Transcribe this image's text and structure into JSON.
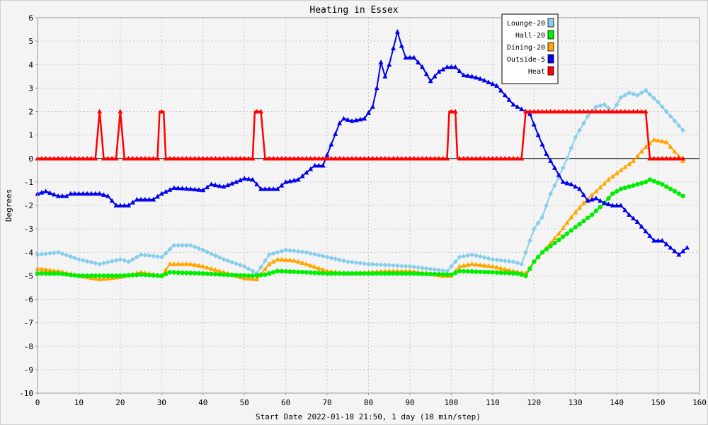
{
  "chart_data": {
    "type": "line",
    "title": "Heating in Essex",
    "xlabel": "Start Date 2022-01-18 21:50, 1 day (10 min/step)",
    "ylabel": "Degrees",
    "xlim": [
      0,
      160
    ],
    "ylim": [
      -10,
      6
    ],
    "x_ticks": [
      0,
      10,
      20,
      30,
      40,
      50,
      60,
      70,
      80,
      90,
      100,
      110,
      120,
      130,
      140,
      150,
      160
    ],
    "y_ticks": [
      6,
      5,
      4,
      3,
      2,
      1,
      0,
      -1,
      -2,
      -3,
      -4,
      -5,
      -6,
      -7,
      -8,
      -9,
      -10
    ],
    "grid": true,
    "legend_position": "top-right",
    "series": [
      {
        "name": "Lounge-20",
        "color": "#87ceeb",
        "marker": "diamond",
        "points": [
          [
            0,
            -4.1
          ],
          [
            5,
            -4.0
          ],
          [
            10,
            -4.3
          ],
          [
            15,
            -4.5
          ],
          [
            20,
            -4.3
          ],
          [
            22,
            -4.4
          ],
          [
            25,
            -4.1
          ],
          [
            30,
            -4.2
          ],
          [
            33,
            -3.7
          ],
          [
            37,
            -3.7
          ],
          [
            40,
            -3.9
          ],
          [
            45,
            -4.3
          ],
          [
            50,
            -4.6
          ],
          [
            53,
            -4.9
          ],
          [
            56,
            -4.1
          ],
          [
            60,
            -3.9
          ],
          [
            65,
            -4.0
          ],
          [
            70,
            -4.2
          ],
          [
            75,
            -4.4
          ],
          [
            80,
            -4.5
          ],
          [
            90,
            -4.6
          ],
          [
            99,
            -4.8
          ],
          [
            102,
            -4.2
          ],
          [
            105,
            -4.1
          ],
          [
            110,
            -4.3
          ],
          [
            115,
            -4.4
          ],
          [
            117,
            -4.5
          ],
          [
            120,
            -3.0
          ],
          [
            122,
            -2.5
          ],
          [
            124,
            -1.5
          ],
          [
            126,
            -0.8
          ],
          [
            128,
            0.0
          ],
          [
            130,
            0.9
          ],
          [
            133,
            1.8
          ],
          [
            135,
            2.2
          ],
          [
            137,
            2.3
          ],
          [
            139,
            2.0
          ],
          [
            141,
            2.6
          ],
          [
            143,
            2.8
          ],
          [
            145,
            2.7
          ],
          [
            147,
            2.9
          ],
          [
            150,
            2.4
          ],
          [
            153,
            1.8
          ],
          [
            156,
            1.2
          ]
        ]
      },
      {
        "name": "Hall-20",
        "color": "#00ee00",
        "marker": "circle",
        "points": [
          [
            0,
            -4.9
          ],
          [
            5,
            -4.9
          ],
          [
            10,
            -5.0
          ],
          [
            15,
            -5.0
          ],
          [
            20,
            -5.0
          ],
          [
            25,
            -4.95
          ],
          [
            30,
            -5.0
          ],
          [
            32,
            -4.85
          ],
          [
            40,
            -4.9
          ],
          [
            45,
            -4.95
          ],
          [
            52,
            -5.0
          ],
          [
            55,
            -4.95
          ],
          [
            58,
            -4.8
          ],
          [
            65,
            -4.85
          ],
          [
            70,
            -4.9
          ],
          [
            80,
            -4.9
          ],
          [
            90,
            -4.9
          ],
          [
            100,
            -4.95
          ],
          [
            102,
            -4.8
          ],
          [
            110,
            -4.85
          ],
          [
            116,
            -4.9
          ],
          [
            118,
            -5.0
          ],
          [
            120,
            -4.4
          ],
          [
            122,
            -4.0
          ],
          [
            125,
            -3.6
          ],
          [
            128,
            -3.2
          ],
          [
            131,
            -2.8
          ],
          [
            134,
            -2.4
          ],
          [
            137,
            -1.9
          ],
          [
            139,
            -1.5
          ],
          [
            141,
            -1.3
          ],
          [
            143,
            -1.2
          ],
          [
            145,
            -1.1
          ],
          [
            147,
            -1.0
          ],
          [
            148,
            -0.9
          ],
          [
            151,
            -1.1
          ],
          [
            154,
            -1.4
          ],
          [
            156,
            -1.6
          ]
        ]
      },
      {
        "name": "Dining-20",
        "color": "#ffa500",
        "marker": "triangle",
        "points": [
          [
            0,
            -4.7
          ],
          [
            5,
            -4.8
          ],
          [
            10,
            -5.0
          ],
          [
            15,
            -5.15
          ],
          [
            20,
            -5.05
          ],
          [
            25,
            -4.85
          ],
          [
            30,
            -5.0
          ],
          [
            32,
            -4.5
          ],
          [
            37,
            -4.5
          ],
          [
            40,
            -4.6
          ],
          [
            45,
            -4.85
          ],
          [
            50,
            -5.1
          ],
          [
            53,
            -5.15
          ],
          [
            56,
            -4.5
          ],
          [
            58,
            -4.3
          ],
          [
            62,
            -4.35
          ],
          [
            65,
            -4.5
          ],
          [
            70,
            -4.8
          ],
          [
            75,
            -4.9
          ],
          [
            85,
            -4.8
          ],
          [
            90,
            -4.8
          ],
          [
            98,
            -5.0
          ],
          [
            100,
            -5.0
          ],
          [
            102,
            -4.6
          ],
          [
            105,
            -4.5
          ],
          [
            110,
            -4.6
          ],
          [
            115,
            -4.8
          ],
          [
            118,
            -4.9
          ],
          [
            120,
            -4.4
          ],
          [
            123,
            -3.8
          ],
          [
            126,
            -3.2
          ],
          [
            129,
            -2.5
          ],
          [
            132,
            -1.9
          ],
          [
            135,
            -1.4
          ],
          [
            138,
            -0.9
          ],
          [
            141,
            -0.5
          ],
          [
            144,
            -0.1
          ],
          [
            147,
            0.5
          ],
          [
            149,
            0.8
          ],
          [
            152,
            0.7
          ],
          [
            154,
            0.3
          ],
          [
            156,
            -0.1
          ]
        ]
      },
      {
        "name": "Outside-5",
        "color": "#0000ee",
        "marker": "triangle",
        "points": [
          [
            0,
            -1.5
          ],
          [
            2,
            -1.4
          ],
          [
            5,
            -1.6
          ],
          [
            7,
            -1.6
          ],
          [
            8,
            -1.5
          ],
          [
            15,
            -1.5
          ],
          [
            17,
            -1.6
          ],
          [
            19,
            -2.0
          ],
          [
            22,
            -2.0
          ],
          [
            24,
            -1.75
          ],
          [
            28,
            -1.75
          ],
          [
            30,
            -1.5
          ],
          [
            33,
            -1.25
          ],
          [
            37,
            -1.3
          ],
          [
            40,
            -1.35
          ],
          [
            42,
            -1.1
          ],
          [
            45,
            -1.2
          ],
          [
            48,
            -1.0
          ],
          [
            50,
            -0.85
          ],
          [
            52,
            -0.9
          ],
          [
            54,
            -1.3
          ],
          [
            58,
            -1.3
          ],
          [
            60,
            -1.0
          ],
          [
            63,
            -0.9
          ],
          [
            65,
            -0.6
          ],
          [
            67,
            -0.3
          ],
          [
            69,
            -0.3
          ],
          [
            71,
            0.6
          ],
          [
            73,
            1.5
          ],
          [
            74,
            1.7
          ],
          [
            76,
            1.6
          ],
          [
            79,
            1.7
          ],
          [
            81,
            2.2
          ],
          [
            82,
            3.0
          ],
          [
            83,
            4.1
          ],
          [
            84,
            3.5
          ],
          [
            85,
            4.0
          ],
          [
            86,
            4.7
          ],
          [
            87,
            5.4
          ],
          [
            88,
            4.8
          ],
          [
            89,
            4.3
          ],
          [
            91,
            4.3
          ],
          [
            93,
            3.9
          ],
          [
            95,
            3.3
          ],
          [
            97,
            3.7
          ],
          [
            99,
            3.9
          ],
          [
            101,
            3.9
          ],
          [
            103,
            3.55
          ],
          [
            105,
            3.5
          ],
          [
            107,
            3.4
          ],
          [
            111,
            3.1
          ],
          [
            113,
            2.7
          ],
          [
            115,
            2.3
          ],
          [
            117,
            2.1
          ],
          [
            119,
            1.9
          ],
          [
            121,
            1.0
          ],
          [
            123,
            0.2
          ],
          [
            125,
            -0.4
          ],
          [
            127,
            -1.0
          ],
          [
            129,
            -1.1
          ],
          [
            131,
            -1.3
          ],
          [
            133,
            -1.8
          ],
          [
            135,
            -1.7
          ],
          [
            137,
            -1.9
          ],
          [
            139,
            -2.0
          ],
          [
            141,
            -2.0
          ],
          [
            143,
            -2.4
          ],
          [
            145,
            -2.7
          ],
          [
            147,
            -3.1
          ],
          [
            149,
            -3.5
          ],
          [
            151,
            -3.5
          ],
          [
            153,
            -3.8
          ],
          [
            155,
            -4.1
          ],
          [
            157,
            -3.8
          ]
        ]
      },
      {
        "name": "Heat",
        "color": "#ff0000",
        "marker": "triangle",
        "points": [
          [
            0,
            0
          ],
          [
            14,
            0
          ],
          [
            15,
            2
          ],
          [
            16,
            0
          ],
          [
            19,
            0
          ],
          [
            20,
            2
          ],
          [
            21,
            0
          ],
          [
            29,
            0
          ],
          [
            29.5,
            2
          ],
          [
            30.5,
            2
          ],
          [
            31,
            0
          ],
          [
            52,
            0
          ],
          [
            52.5,
            2
          ],
          [
            54,
            2
          ],
          [
            55,
            0
          ],
          [
            99,
            0
          ],
          [
            99.5,
            2
          ],
          [
            101,
            2
          ],
          [
            101.5,
            0
          ],
          [
            117,
            0
          ],
          [
            118,
            2
          ],
          [
            147,
            2
          ],
          [
            148,
            0
          ],
          [
            156,
            0
          ]
        ]
      }
    ]
  }
}
